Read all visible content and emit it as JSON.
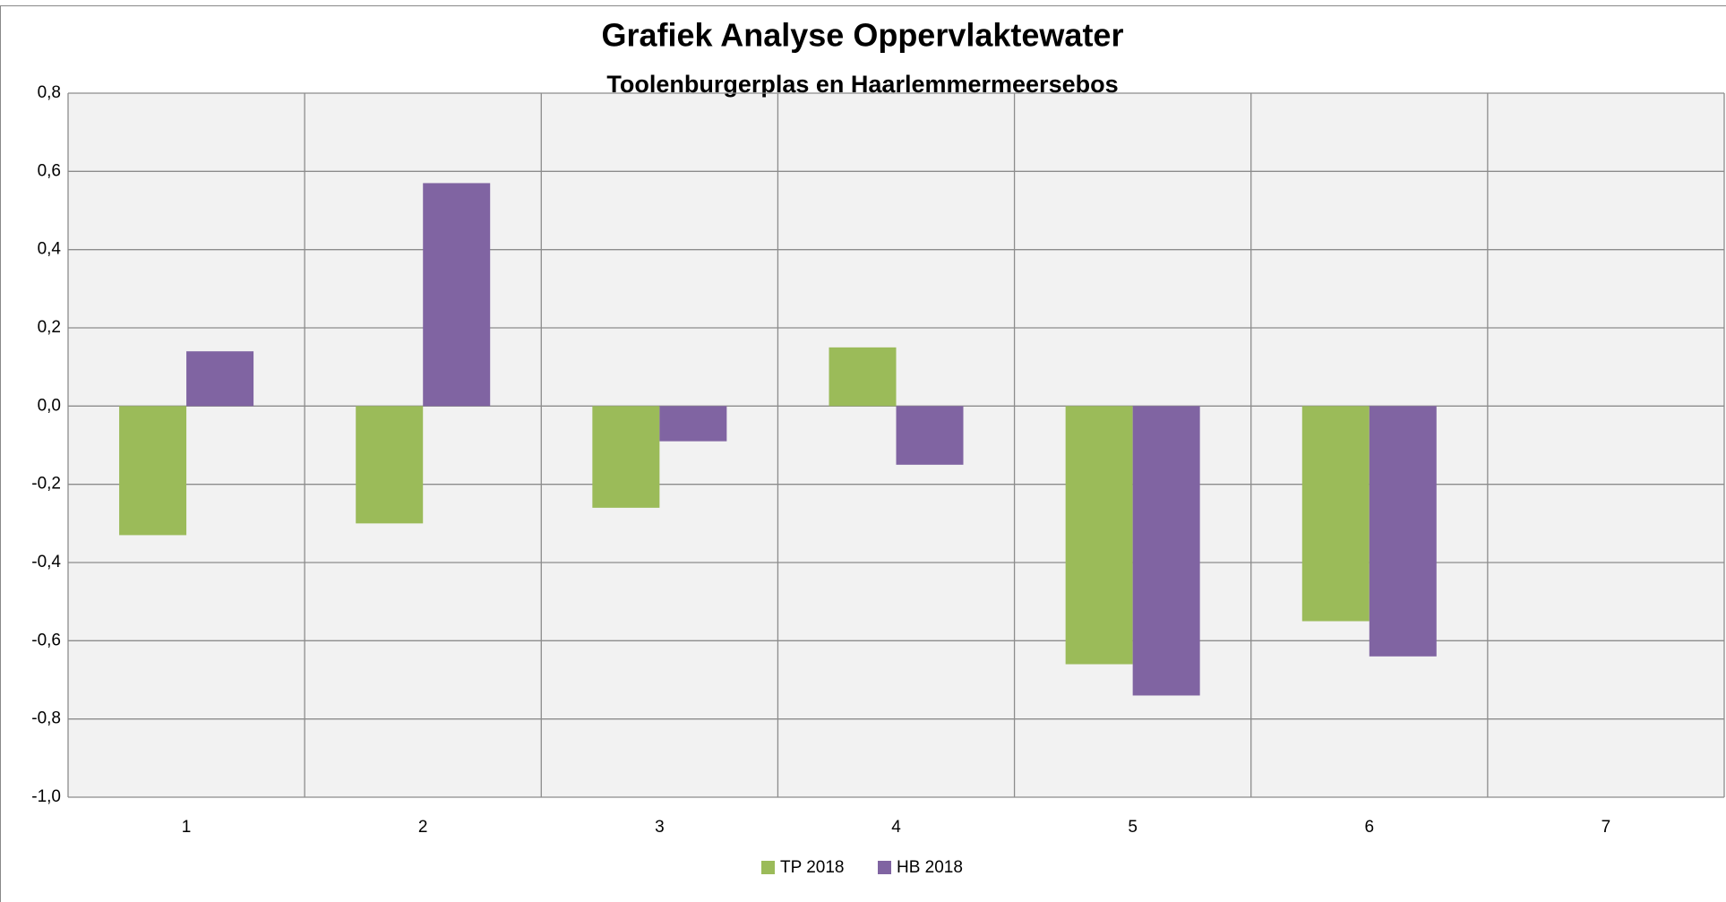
{
  "chart_data": {
    "type": "bar",
    "title": "Grafiek Analyse Oppervlaktewater",
    "subtitle": "Toolenburgerplas en Haarlemmermeersebos",
    "categories": [
      "1",
      "2",
      "3",
      "4",
      "5",
      "6",
      "7"
    ],
    "series": [
      {
        "name": "TP 2018",
        "color": "#9bbb59",
        "values": [
          -0.33,
          -0.3,
          -0.26,
          0.15,
          -0.66,
          -0.55,
          null
        ]
      },
      {
        "name": "HB 2018",
        "color": "#8064a2",
        "values": [
          0.14,
          0.57,
          -0.09,
          -0.15,
          -0.74,
          -0.64,
          null
        ]
      }
    ],
    "ylim": [
      -1.0,
      0.8
    ],
    "yticks": [
      {
        "value": -1.0,
        "label": "-1,0"
      },
      {
        "value": -0.8,
        "label": "-0,8"
      },
      {
        "value": -0.6,
        "label": "-0,6"
      },
      {
        "value": -0.4,
        "label": "-0,4"
      },
      {
        "value": -0.2,
        "label": "-0,2"
      },
      {
        "value": 0.0,
        "label": "0,0"
      },
      {
        "value": 0.2,
        "label": "0,2"
      },
      {
        "value": 0.4,
        "label": "0,4"
      },
      {
        "value": 0.6,
        "label": "0,6"
      },
      {
        "value": 0.8,
        "label": "0,8"
      }
    ],
    "grid": true,
    "legend": "bottom"
  }
}
